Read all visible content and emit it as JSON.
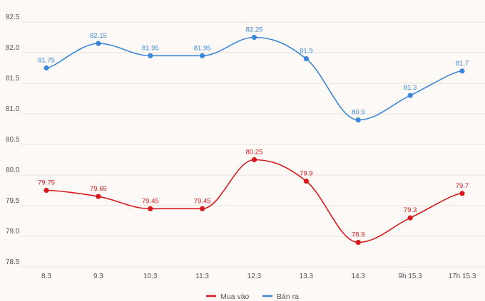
{
  "chart_data": {
    "type": "line",
    "title": "",
    "xlabel": "",
    "ylabel": "",
    "categories": [
      "8.3",
      "9.3",
      "10.3",
      "11.3",
      "12.3",
      "13.3",
      "14.3",
      "9h 15.3",
      "17h 15.3"
    ],
    "yticks": [
      "82.5",
      "82.0",
      "81.5",
      "81.0",
      "80.5",
      "80.0",
      "79.5",
      "79.0",
      "78.5"
    ],
    "ylim": [
      78.5,
      82.5
    ],
    "grid": true,
    "legend_position": "bottom",
    "series": [
      {
        "name": "Mua vào",
        "color": "#d7191c",
        "values": [
          79.75,
          79.65,
          79.45,
          79.45,
          80.25,
          79.9,
          78.9,
          79.3,
          79.7
        ],
        "labels": [
          "79.75",
          "79.65",
          "79.45",
          "79.45",
          "80.25",
          "79.9",
          "78.9",
          "79.3",
          "79.7"
        ]
      },
      {
        "name": "Bán ra",
        "color": "#3a87d9",
        "values": [
          81.75,
          82.15,
          81.95,
          81.95,
          82.25,
          81.9,
          80.9,
          81.3,
          81.7
        ],
        "labels": [
          "81.75",
          "82.15",
          "81.95",
          "81.95",
          "82.25",
          "81.9",
          "80.9",
          "81.3",
          "81.7"
        ]
      }
    ]
  }
}
